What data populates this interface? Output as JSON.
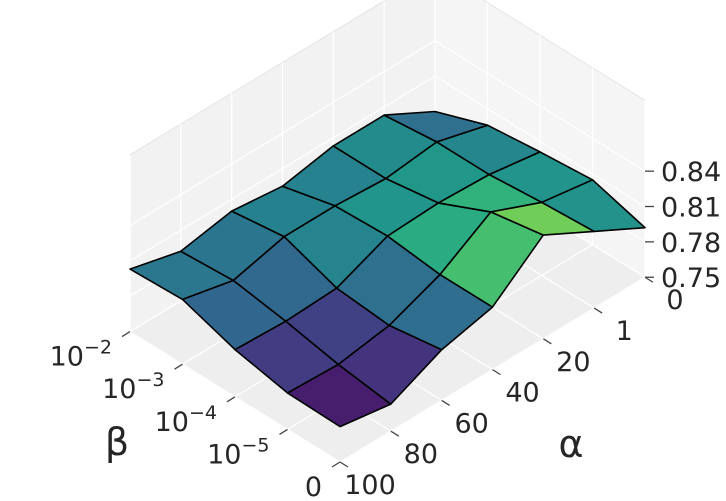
{
  "chart_data": {
    "type": "surface3d",
    "title": "",
    "xlabel": "β",
    "ylabel": "α",
    "zlabel": "",
    "x_tick_labels": [
      "0",
      "10",
      "10",
      "10",
      "10"
    ],
    "x_tick_exponents": [
      "",
      "−5",
      "−4",
      "−3",
      "−2"
    ],
    "y_tick_labels": [
      "0",
      "1",
      "20",
      "40",
      "60",
      "80",
      "100"
    ],
    "z_tick_labels": [
      "0.75",
      "0.78",
      "0.81",
      "0.84"
    ],
    "z_ticks": [
      0.75,
      0.78,
      0.81,
      0.84
    ],
    "zlim": [
      0.75,
      0.845
    ],
    "colormap": "viridis",
    "grid": true,
    "surface": [
      [
        0.792,
        0.815,
        0.838,
        0.803,
        0.793,
        0.773,
        0.78
      ],
      [
        0.805,
        0.812,
        0.83,
        0.803,
        0.786,
        0.779,
        0.781
      ],
      [
        0.801,
        0.808,
        0.81,
        0.808,
        0.79,
        0.788,
        0.79
      ],
      [
        0.796,
        0.808,
        0.803,
        0.806,
        0.806,
        0.795,
        0.805
      ],
      [
        0.78,
        0.803,
        0.803,
        0.795,
        0.8,
        0.792,
        0.803
      ]
    ]
  },
  "colors": {
    "pane": "#f2f2f2",
    "grid": "#ffffff",
    "edge": "#000000"
  }
}
